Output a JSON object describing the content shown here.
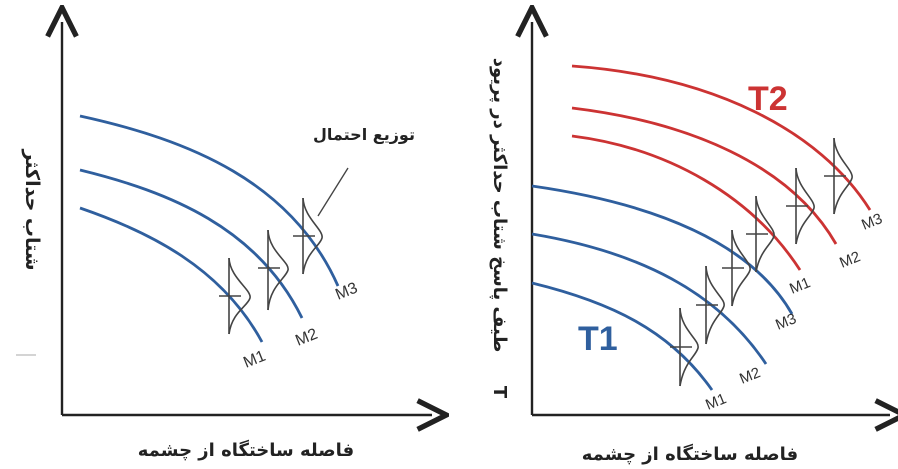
{
  "left_panel": {
    "y_axis_label": "شتاب حداکثر",
    "x_axis_label": "فاصله ساختگاه از چشمه",
    "annotation": "توزیع احتمال",
    "curves": [
      {
        "label": "M1",
        "color": "#2f5f9e"
      },
      {
        "label": "M2",
        "color": "#2f5f9e"
      },
      {
        "label": "M3",
        "color": "#2f5f9e"
      }
    ]
  },
  "right_panel": {
    "y_axis_label": "طیف پاسخ شتاب حداکثر در پریود",
    "y_axis_symbol": "T",
    "x_axis_label": "فاصله ساختگاه از چشمه",
    "group_labels": {
      "low": "T1",
      "high": "T2"
    },
    "group_colors": {
      "low": "#2f5f9e",
      "high": "#cc3333"
    },
    "blue_curves": [
      "M1",
      "M2",
      "M3"
    ],
    "red_curves": [
      "M1",
      "M2",
      "M3"
    ]
  },
  "colors": {
    "axis": "#222222",
    "dist": "#444444"
  }
}
